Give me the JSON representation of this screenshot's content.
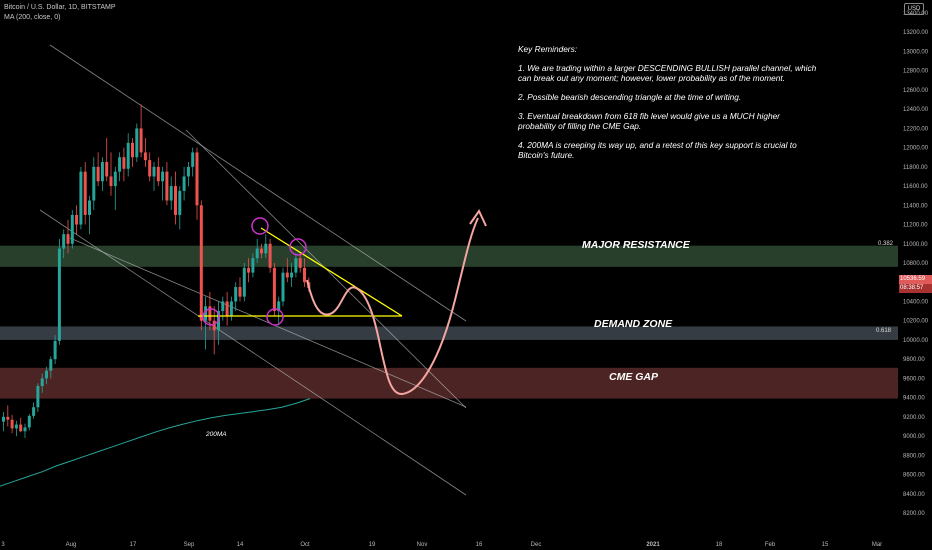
{
  "legend": {
    "symbol": "Bitcoin / U.S. Dollar, 1D, BITSTAMP",
    "indicator": "MA (200, close, 0)"
  },
  "currency": "USD",
  "notes": {
    "title": "Key Reminders:",
    "items": [
      "1. We are trading within a larger DESCENDING BULLISH parallel channel, which can break out any moment; however, lower probability as of the moment.",
      "2. Possible bearish descending triangle at the time of writing.",
      "3. Eventual breakdown from 618 fib level would give us a MUCH higher probability of filling the CME Gap.",
      "4. 200MA is creeping its way up, and a retest of this key support is crucial to Bitcoin's future."
    ]
  },
  "zones": {
    "resistance": {
      "label": "MAJOR RESISTANCE",
      "fib": "0.382",
      "from": 10760,
      "to": 10980,
      "color": "#2e4a33"
    },
    "demand": {
      "label": "DEMAND ZONE",
      "fib": "0.618",
      "from": 10000,
      "to": 10140,
      "color": "#40464f"
    },
    "cme": {
      "label": "CME GAP",
      "from": 9390,
      "to": 9710,
      "color": "#5a2a2a"
    }
  },
  "ma_label": "200MA",
  "price_tags": [
    {
      "text": "10536.59",
      "color": "#e05a5a"
    },
    {
      "text": "08:38:57",
      "color": "#a83232"
    }
  ],
  "chart_data": {
    "type": "candlestick",
    "symbol": "BTCUSD",
    "timeframe": "1D",
    "ylim": [
      8100,
      13500
    ],
    "y_ticks": [
      8200,
      8400,
      8600,
      8800,
      9000,
      9200,
      9400,
      9600,
      9800,
      10000,
      10200,
      10400,
      10600,
      10800,
      11000,
      11200,
      11400,
      11600,
      11800,
      12000,
      12200,
      12400,
      12600,
      12800,
      13000,
      13200,
      13400
    ],
    "x_ticks": [
      "3",
      "Aug",
      "17",
      "Sep",
      "14",
      "Oct",
      "19",
      "Nov",
      "16",
      "Dec",
      "2021",
      "18",
      "Feb",
      "15",
      "Mar"
    ],
    "colors": {
      "up": "#26a69a",
      "down": "#ef5350",
      "ma": "#26a69a"
    },
    "ohlc": [
      [
        9150,
        9250,
        9050,
        9200
      ],
      [
        9200,
        9320,
        9100,
        9170
      ],
      [
        9170,
        9220,
        9030,
        9080
      ],
      [
        9080,
        9160,
        9000,
        9120
      ],
      [
        9120,
        9190,
        9040,
        9050
      ],
      [
        9050,
        9130,
        8980,
        9090
      ],
      [
        9090,
        9230,
        9060,
        9210
      ],
      [
        9210,
        9350,
        9180,
        9300
      ],
      [
        9300,
        9550,
        9250,
        9520
      ],
      [
        9520,
        9650,
        9450,
        9600
      ],
      [
        9600,
        9720,
        9540,
        9680
      ],
      [
        9680,
        9830,
        9600,
        9800
      ],
      [
        9800,
        10050,
        9750,
        9990
      ],
      [
        9990,
        11050,
        9950,
        10950
      ],
      [
        10950,
        11150,
        10850,
        11100
      ],
      [
        11100,
        11250,
        10900,
        11000
      ],
      [
        11000,
        11350,
        10950,
        11300
      ],
      [
        11300,
        11400,
        11100,
        11200
      ],
      [
        11200,
        11800,
        11150,
        11750
      ],
      [
        11750,
        11850,
        11200,
        11300
      ],
      [
        11300,
        11500,
        11100,
        11450
      ],
      [
        11450,
        11900,
        11350,
        11800
      ],
      [
        11800,
        11950,
        11600,
        11650
      ],
      [
        11650,
        11900,
        11550,
        11850
      ],
      [
        11850,
        12100,
        11650,
        11700
      ],
      [
        11700,
        11950,
        11500,
        11600
      ],
      [
        11600,
        11800,
        11350,
        11750
      ],
      [
        11750,
        11950,
        11650,
        11900
      ],
      [
        11900,
        12000,
        11650,
        11780
      ],
      [
        11780,
        12150,
        11700,
        12050
      ],
      [
        12050,
        12100,
        11800,
        11900
      ],
      [
        11900,
        12250,
        11850,
        12200
      ],
      [
        12200,
        12450,
        11900,
        11950
      ],
      [
        11950,
        12100,
        11800,
        11870
      ],
      [
        11870,
        11950,
        11650,
        11700
      ],
      [
        11700,
        11850,
        11550,
        11800
      ],
      [
        11800,
        11900,
        11600,
        11650
      ],
      [
        11650,
        11800,
        11450,
        11750
      ],
      [
        11750,
        11850,
        11400,
        11450
      ],
      [
        11450,
        11700,
        11350,
        11600
      ],
      [
        11600,
        11750,
        11200,
        11300
      ],
      [
        11300,
        11600,
        11150,
        11550
      ],
      [
        11550,
        11800,
        11450,
        11700
      ],
      [
        11700,
        11850,
        11600,
        11800
      ],
      [
        11800,
        12000,
        11700,
        11950
      ],
      [
        11950,
        12000,
        11250,
        11400
      ],
      [
        11400,
        11450,
        10100,
        10200
      ],
      [
        10200,
        10450,
        9900,
        10350
      ],
      [
        10350,
        10500,
        10100,
        10200
      ],
      [
        10200,
        10350,
        9850,
        10100
      ],
      [
        10100,
        10400,
        9950,
        10300
      ],
      [
        10300,
        10450,
        10200,
        10400
      ],
      [
        10400,
        10500,
        10150,
        10250
      ],
      [
        10250,
        10450,
        10200,
        10400
      ],
      [
        10400,
        10600,
        10300,
        10550
      ],
      [
        10550,
        10650,
        10400,
        10450
      ],
      [
        10450,
        10800,
        10400,
        10750
      ],
      [
        10750,
        10850,
        10600,
        10700
      ],
      [
        10700,
        10900,
        10650,
        10850
      ],
      [
        10850,
        11050,
        10800,
        10950
      ],
      [
        10950,
        11000,
        10850,
        10900
      ],
      [
        10900,
        11100,
        10850,
        11000
      ],
      [
        11000,
        11050,
        10700,
        10750
      ],
      [
        10750,
        10800,
        10250,
        10300
      ],
      [
        10300,
        10450,
        10150,
        10400
      ],
      [
        10400,
        10750,
        10350,
        10700
      ],
      [
        10700,
        10850,
        10600,
        10650
      ],
      [
        10650,
        10800,
        10550,
        10700
      ],
      [
        10700,
        10900,
        10650,
        10850
      ],
      [
        10850,
        10900,
        10700,
        10750
      ],
      [
        10750,
        10850,
        10550,
        10600
      ],
      [
        10600,
        10650,
        10500,
        10540
      ]
    ],
    "ma_200": [
      8480,
      8530,
      8580,
      8630,
      8690,
      8740,
      8790,
      8840,
      8890,
      8940,
      8990,
      9040,
      9085,
      9125,
      9160,
      9190,
      9215,
      9235,
      9255,
      9275,
      9300,
      9340,
      9390
    ],
    "annotations": {
      "descending_channel": "parallel lines",
      "descending_triangle": "yellow",
      "projection": "salmon path to CME gap then up-arrow"
    }
  }
}
